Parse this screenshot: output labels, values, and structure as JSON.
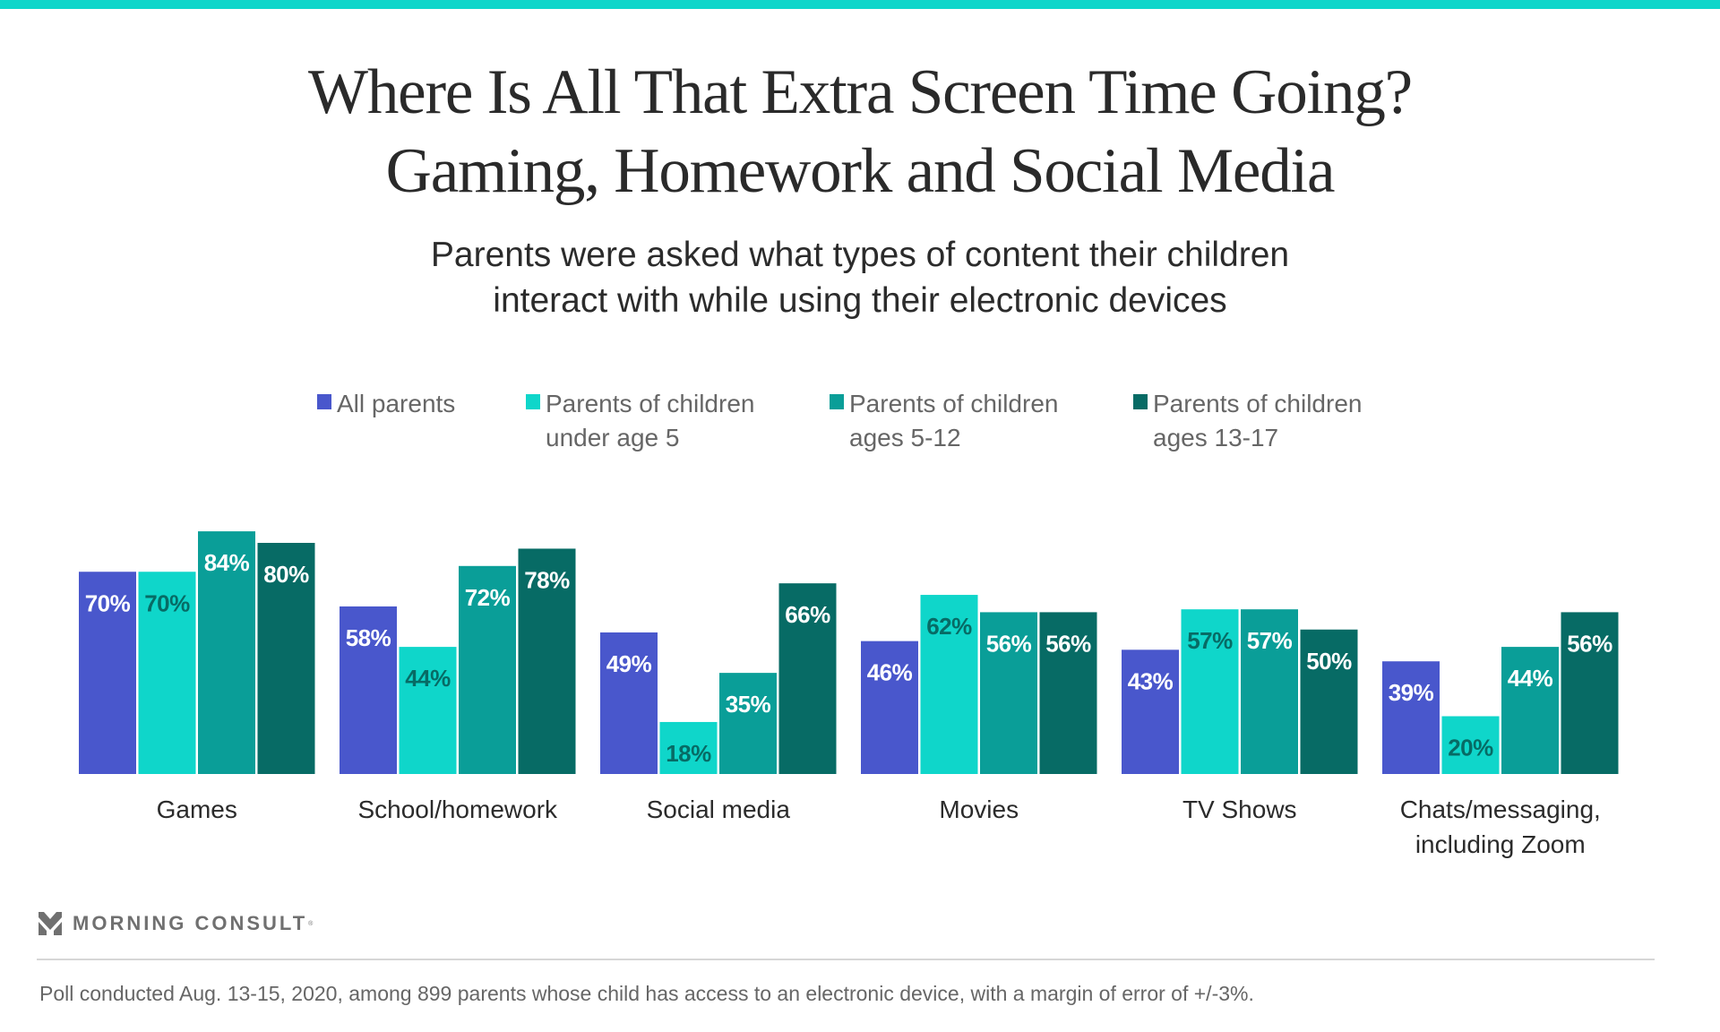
{
  "header": {
    "title_lines": [
      "Where Is All That Extra Screen Time Going?",
      "Gaming, Homework and Social Media"
    ],
    "subtitle_lines": [
      "Parents were asked what types of content their children",
      "interact with while using their electronic devices"
    ]
  },
  "colors": {
    "accent_bar": "#0FD6CA",
    "all_parents": "#4957CC",
    "under_5": "#0FD6CA",
    "ages_5_12": "#0A9E98",
    "ages_13_17": "#076B65",
    "label_light": "#FFFFFF",
    "label_dark": "#076B65"
  },
  "legend": [
    {
      "label": "All parents",
      "color": "#4957CC"
    },
    {
      "label": "Parents of children\nunder age 5",
      "color": "#0FD6CA"
    },
    {
      "label": "Parents of children\nages 5-12",
      "color": "#0A9E98"
    },
    {
      "label": "Parents of children\nages 13-17",
      "color": "#076B65"
    }
  ],
  "chart_data": {
    "type": "bar",
    "title": "Where Is All That Extra Screen Time Going? Gaming, Homework and Social Media",
    "subtitle": "Parents were asked what types of content their children interact with while using their electronic devices",
    "xlabel": "",
    "ylabel": "",
    "ylim": [
      0,
      100
    ],
    "grid": false,
    "legend_position": "top-center",
    "value_suffix": "%",
    "categories": [
      "Games",
      "School/homework",
      "Social media",
      "Movies",
      "TV Shows",
      "Chats/messaging,\nincluding Zoom"
    ],
    "series": [
      {
        "name": "All parents",
        "color": "#4957CC",
        "label_color": "#FFFFFF",
        "values": [
          70,
          58,
          49,
          46,
          43,
          39
        ]
      },
      {
        "name": "Parents of children under age 5",
        "color": "#0FD6CA",
        "label_color": "#076B65",
        "values": [
          70,
          44,
          18,
          62,
          57,
          20
        ]
      },
      {
        "name": "Parents of children ages 5-12",
        "color": "#0A9E98",
        "label_color": "#FFFFFF",
        "values": [
          84,
          72,
          35,
          56,
          57,
          44
        ]
      },
      {
        "name": "Parents of children ages 13-17",
        "color": "#076B65",
        "label_color": "#FFFFFF",
        "values": [
          80,
          78,
          66,
          56,
          50,
          56
        ]
      }
    ]
  },
  "footer": {
    "brand": "MORNING CONSULT",
    "brand_mark": "®",
    "note": "Poll conducted Aug. 13-15, 2020, among 899 parents whose child has access to an electronic device, with a margin of error of +/-3%."
  }
}
